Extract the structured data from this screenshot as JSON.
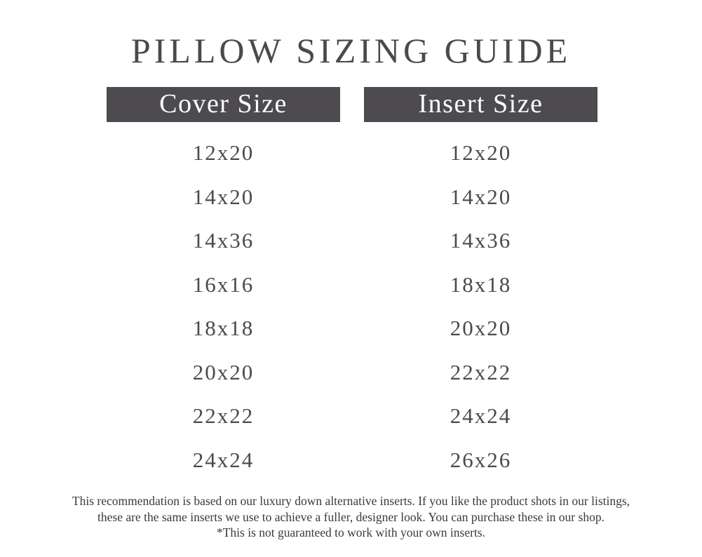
{
  "title": "PILLOW SIZING GUIDE",
  "columns": {
    "cover": {
      "header": "Cover Size",
      "sizes": [
        "12x20",
        "14x20",
        "14x36",
        "16x16",
        "18x18",
        "20x20",
        "22x22",
        "24x24"
      ]
    },
    "insert": {
      "header": "Insert Size",
      "sizes": [
        "12x20",
        "14x20",
        "14x36",
        "18x18",
        "20x20",
        "22x22",
        "24x24",
        "26x26"
      ]
    }
  },
  "note": {
    "lines": [
      "This recommendation is based on our luxury down alternative inserts. If you like the product shots in our listings,",
      "these are the same inserts we use to achieve a fuller, designer look. You can purchase these in our shop.",
      "*This is not guaranteed to work with your own inserts."
    ]
  },
  "colors": {
    "header_bg": "#4d4b4f",
    "text": "#4a4a4c"
  }
}
